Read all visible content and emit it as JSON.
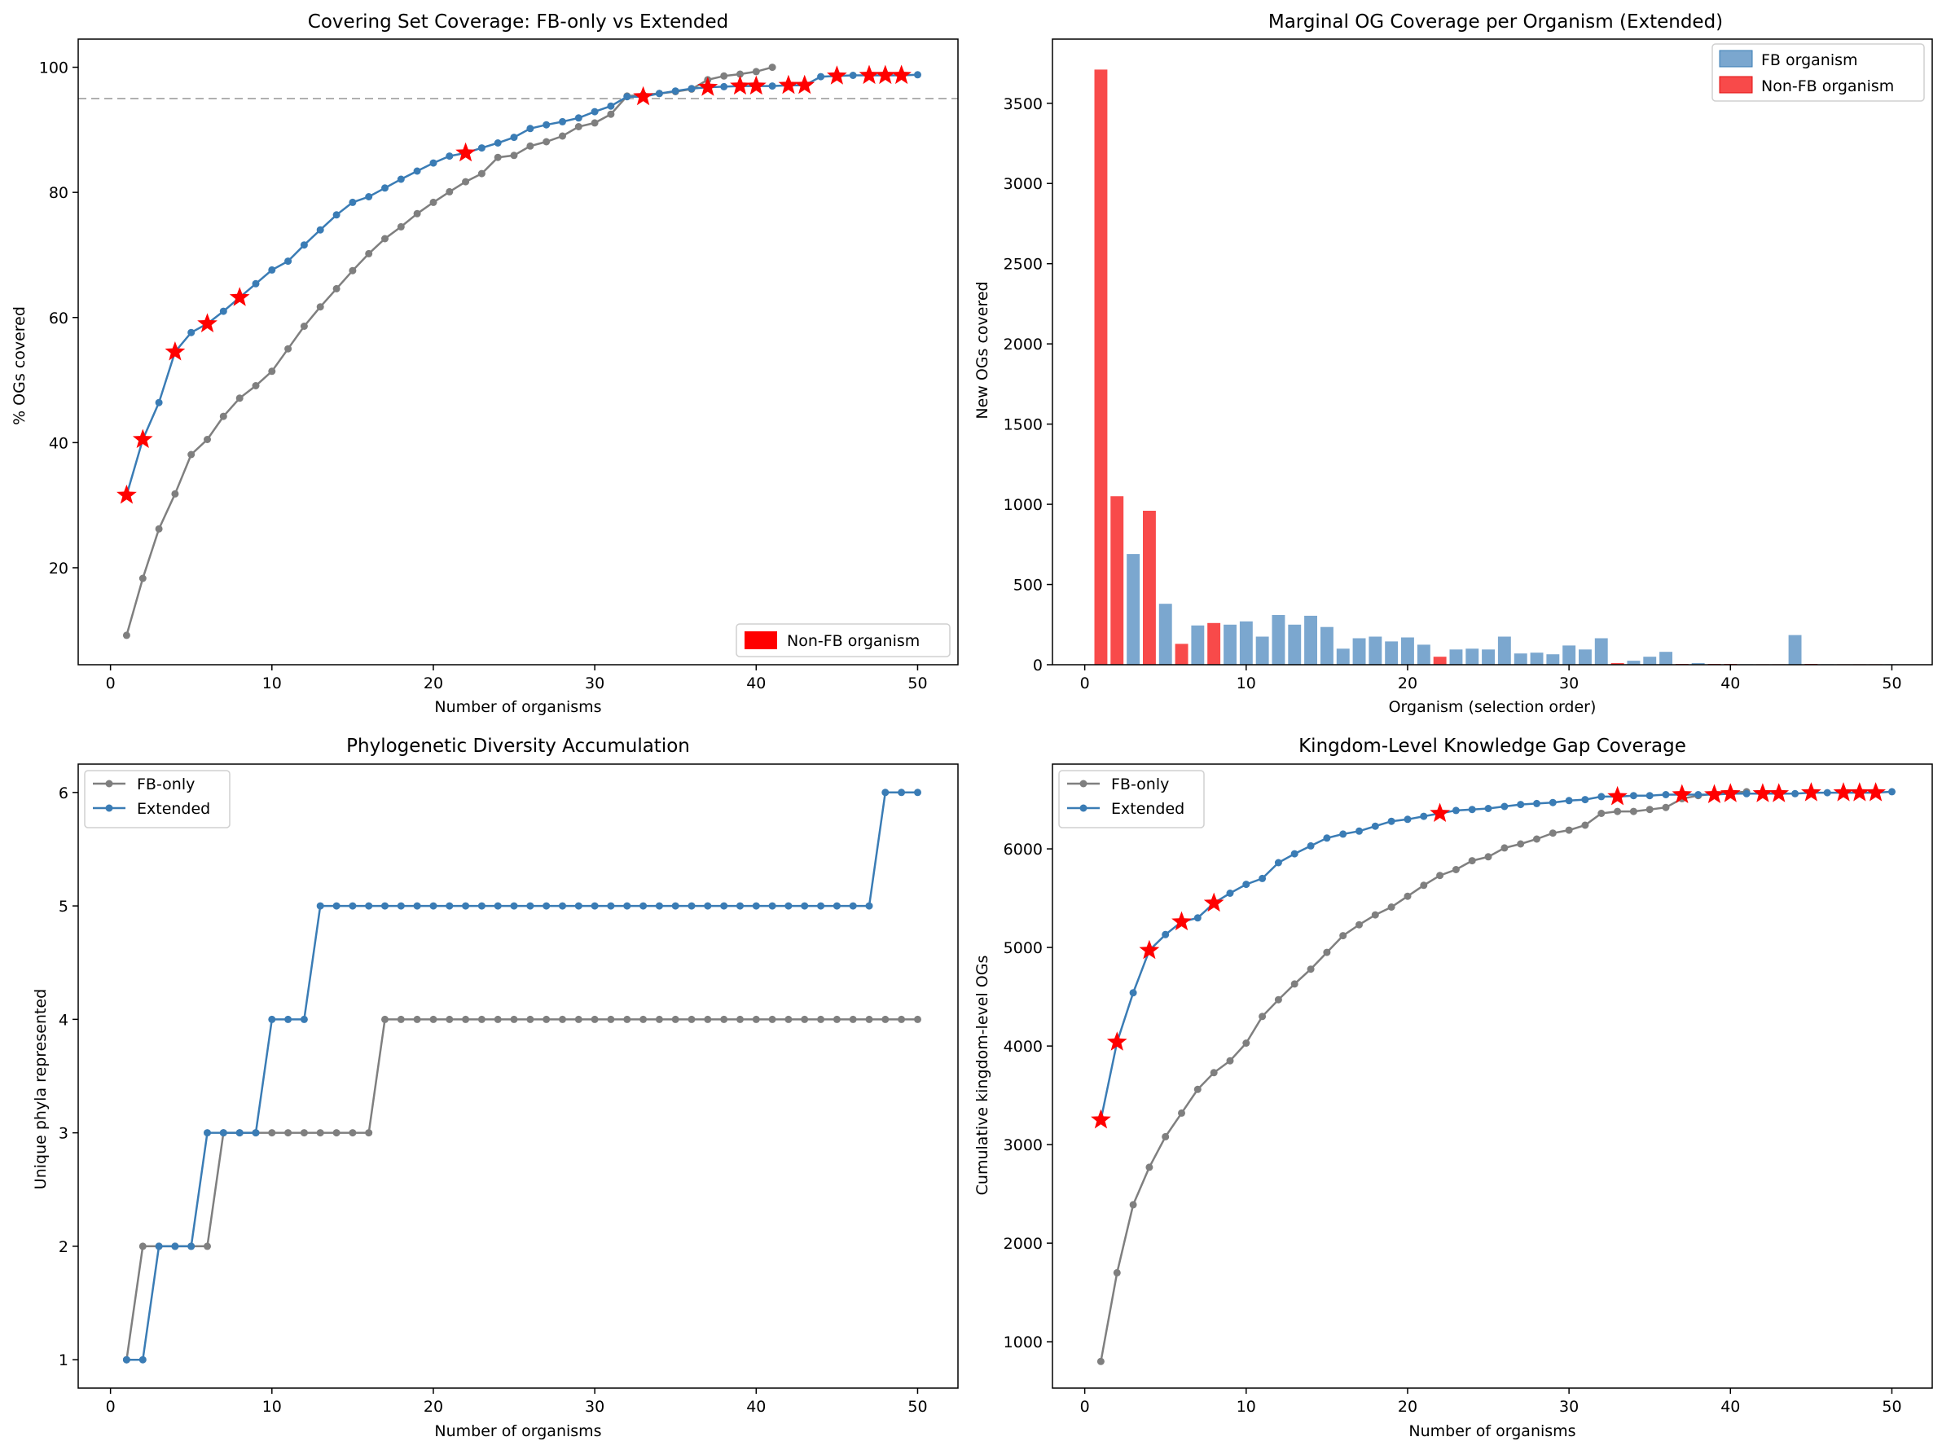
{
  "colors": {
    "fb_only_line": "#7f7f7f",
    "extended_line": "#3a7cb5",
    "non_fb_star": "#ff0000",
    "fb_bar": "#7ba7cf",
    "non_fb_bar": "#f84a4a",
    "threshold": "#b0b0b0"
  },
  "chart_data": [
    {
      "type": "line",
      "title": "Covering Set Coverage: FB-only vs Extended",
      "xlabel": "Number of organisms",
      "ylabel": "% OGs covered",
      "xlim": [
        -2,
        52.5
      ],
      "ylim": [
        4.5,
        104.5
      ],
      "xticks": [
        0,
        10,
        20,
        30,
        40,
        50
      ],
      "yticks": [
        20,
        40,
        60,
        80,
        100
      ],
      "hline": 95,
      "legend": {
        "position": "lower-right",
        "entries": [
          {
            "label": "Non-FB organism",
            "kind": "patch",
            "color_key": "non_fb_star"
          }
        ]
      },
      "series": [
        {
          "name": "FB-only",
          "color_key": "fb_only_line",
          "x": [
            1,
            2,
            3,
            4,
            5,
            6,
            7,
            8,
            9,
            10,
            11,
            12,
            13,
            14,
            15,
            16,
            17,
            18,
            19,
            20,
            21,
            22,
            23,
            24,
            25,
            26,
            27,
            28,
            29,
            30,
            31,
            32,
            33,
            34,
            35,
            36,
            37,
            38,
            39,
            40,
            41
          ],
          "y": [
            9.2,
            18.3,
            26.2,
            31.8,
            38.1,
            40.5,
            44.2,
            47.1,
            49.1,
            51.4,
            55.0,
            58.6,
            61.7,
            64.6,
            67.5,
            70.2,
            72.6,
            74.5,
            76.6,
            78.4,
            80.1,
            81.7,
            83.0,
            85.6,
            85.9,
            87.4,
            88.1,
            89.0,
            90.5,
            91.1,
            92.5,
            95.4,
            95.6,
            95.8,
            96.1,
            96.5,
            98.0,
            98.6,
            98.9,
            99.3,
            100.0
          ]
        },
        {
          "name": "Extended",
          "color_key": "extended_line",
          "x": [
            1,
            2,
            3,
            4,
            5,
            6,
            7,
            8,
            9,
            10,
            11,
            12,
            13,
            14,
            15,
            16,
            17,
            18,
            19,
            20,
            21,
            22,
            23,
            24,
            25,
            26,
            27,
            28,
            29,
            30,
            31,
            32,
            33,
            34,
            35,
            36,
            37,
            38,
            39,
            40,
            41,
            42,
            43,
            44,
            45,
            46,
            47,
            48,
            49,
            50
          ],
          "y": [
            31.6,
            40.5,
            46.4,
            54.5,
            57.6,
            59.0,
            61.0,
            63.2,
            65.4,
            67.6,
            69.0,
            71.6,
            74.0,
            76.4,
            78.4,
            79.3,
            80.7,
            82.1,
            83.4,
            84.7,
            85.8,
            86.3,
            87.1,
            87.9,
            88.8,
            90.2,
            90.8,
            91.3,
            91.9,
            92.9,
            93.8,
            95.3,
            95.3,
            95.8,
            96.2,
            96.6,
            96.8,
            96.9,
            97.0,
            97.0,
            97.0,
            97.1,
            97.1,
            98.5,
            98.6,
            98.7,
            98.7,
            98.7,
            98.7,
            98.8
          ],
          "non_fb_indices": [
            1,
            2,
            4,
            6,
            8,
            22,
            33,
            37,
            39,
            40,
            42,
            43,
            45,
            47,
            48,
            49
          ]
        }
      ]
    },
    {
      "type": "bar",
      "title": "Marginal OG Coverage per Organism (Extended)",
      "xlabel": "Organism (selection order)",
      "ylabel": "New OGs covered",
      "xlim": [
        -2,
        52.5
      ],
      "ylim": [
        0,
        3900
      ],
      "xticks": [
        0,
        10,
        20,
        30,
        40,
        50
      ],
      "yticks": [
        0,
        500,
        1000,
        1500,
        2000,
        2500,
        3000,
        3500
      ],
      "legend": {
        "position": "top-right",
        "entries": [
          {
            "label": "FB organism",
            "color_key": "fb_bar"
          },
          {
            "label": "Non-FB organism",
            "color_key": "non_fb_bar"
          }
        ]
      },
      "categories": [
        1,
        2,
        3,
        4,
        5,
        6,
        7,
        8,
        9,
        10,
        11,
        12,
        13,
        14,
        15,
        16,
        17,
        18,
        19,
        20,
        21,
        22,
        23,
        24,
        25,
        26,
        27,
        28,
        29,
        30,
        31,
        32,
        33,
        34,
        35,
        36,
        37,
        38,
        39,
        40,
        41,
        42,
        43,
        44,
        45,
        46,
        47,
        48,
        49,
        50
      ],
      "values": [
        3710,
        1050,
        690,
        960,
        380,
        130,
        245,
        260,
        250,
        270,
        175,
        310,
        250,
        305,
        235,
        100,
        165,
        175,
        145,
        170,
        125,
        50,
        95,
        100,
        95,
        175,
        70,
        75,
        65,
        120,
        95,
        165,
        10,
        25,
        50,
        80,
        5,
        10,
        5,
        5,
        3,
        3,
        3,
        185,
        5,
        3,
        3,
        3,
        3,
        3
      ],
      "non_fb_indices": [
        1,
        2,
        4,
        6,
        8,
        22,
        33,
        37,
        39,
        40,
        42,
        43,
        45,
        47,
        48,
        49
      ]
    },
    {
      "type": "line",
      "title": "Phylogenetic Diversity Accumulation",
      "xlabel": "Number of organisms",
      "ylabel": "Unique phyla represented",
      "xlim": [
        -2,
        52.5
      ],
      "ylim": [
        0.75,
        6.25
      ],
      "xticks": [
        0,
        10,
        20,
        30,
        40,
        50
      ],
      "yticks": [
        1,
        2,
        3,
        4,
        5,
        6
      ],
      "legend": {
        "position": "top-left",
        "entries": [
          {
            "label": "FB-only",
            "color_key": "fb_only_line"
          },
          {
            "label": "Extended",
            "color_key": "extended_line"
          }
        ]
      },
      "series": [
        {
          "name": "FB-only",
          "color_key": "fb_only_line",
          "x": [
            1,
            2,
            3,
            4,
            5,
            6,
            7,
            8,
            9,
            10,
            11,
            12,
            13,
            14,
            15,
            16,
            17,
            18,
            19,
            20,
            21,
            22,
            23,
            24,
            25,
            26,
            27,
            28,
            29,
            30,
            31,
            32,
            33,
            34,
            35,
            36,
            37,
            38,
            39,
            40,
            41,
            42,
            43,
            44,
            45,
            46,
            47,
            48,
            49,
            50
          ],
          "y": [
            1,
            2,
            2,
            2,
            2,
            2,
            3,
            3,
            3,
            3,
            3,
            3,
            3,
            3,
            3,
            3,
            4,
            4,
            4,
            4,
            4,
            4,
            4,
            4,
            4,
            4,
            4,
            4,
            4,
            4,
            4,
            4,
            4,
            4,
            4,
            4,
            4,
            4,
            4,
            4,
            4,
            4,
            4,
            4,
            4,
            4,
            4,
            4,
            4,
            4
          ]
        },
        {
          "name": "Extended",
          "color_key": "extended_line",
          "x": [
            1,
            2,
            3,
            4,
            5,
            6,
            7,
            8,
            9,
            10,
            11,
            12,
            13,
            14,
            15,
            16,
            17,
            18,
            19,
            20,
            21,
            22,
            23,
            24,
            25,
            26,
            27,
            28,
            29,
            30,
            31,
            32,
            33,
            34,
            35,
            36,
            37,
            38,
            39,
            40,
            41,
            42,
            43,
            44,
            45,
            46,
            47,
            48,
            49,
            50
          ],
          "y": [
            1,
            1,
            2,
            2,
            2,
            3,
            3,
            3,
            3,
            4,
            4,
            4,
            5,
            5,
            5,
            5,
            5,
            5,
            5,
            5,
            5,
            5,
            5,
            5,
            5,
            5,
            5,
            5,
            5,
            5,
            5,
            5,
            5,
            5,
            5,
            5,
            5,
            5,
            5,
            5,
            5,
            5,
            5,
            5,
            5,
            5,
            5,
            6,
            6,
            6
          ]
        }
      ]
    },
    {
      "type": "line",
      "title": "Kingdom-Level Knowledge Gap Coverage",
      "xlabel": "Number of organisms",
      "ylabel": "Cumulative kingdom-level OGs",
      "xlim": [
        -2,
        52.5
      ],
      "ylim": [
        530,
        6860
      ],
      "xticks": [
        0,
        10,
        20,
        30,
        40,
        50
      ],
      "yticks": [
        1000,
        2000,
        3000,
        4000,
        5000,
        6000
      ],
      "legend": {
        "position": "top-left",
        "entries": [
          {
            "label": "FB-only",
            "color_key": "fb_only_line"
          },
          {
            "label": "Extended",
            "color_key": "extended_line"
          }
        ]
      },
      "series": [
        {
          "name": "FB-only",
          "color_key": "fb_only_line",
          "x": [
            1,
            2,
            3,
            4,
            5,
            6,
            7,
            8,
            9,
            10,
            11,
            12,
            13,
            14,
            15,
            16,
            17,
            18,
            19,
            20,
            21,
            22,
            23,
            24,
            25,
            26,
            27,
            28,
            29,
            30,
            31,
            32,
            33,
            34,
            35,
            36,
            37,
            38,
            39,
            40,
            41
          ],
          "y": [
            800,
            1700,
            2390,
            2770,
            3080,
            3320,
            3560,
            3730,
            3850,
            4030,
            4300,
            4470,
            4630,
            4780,
            4950,
            5120,
            5230,
            5330,
            5410,
            5520,
            5630,
            5730,
            5790,
            5880,
            5920,
            6010,
            6050,
            6100,
            6160,
            6190,
            6240,
            6360,
            6380,
            6380,
            6400,
            6420,
            6510,
            6540,
            6560,
            6570,
            6580
          ]
        },
        {
          "name": "Extended",
          "color_key": "extended_line",
          "x": [
            1,
            2,
            3,
            4,
            5,
            6,
            7,
            8,
            9,
            10,
            11,
            12,
            13,
            14,
            15,
            16,
            17,
            18,
            19,
            20,
            21,
            22,
            23,
            24,
            25,
            26,
            27,
            28,
            29,
            30,
            31,
            32,
            33,
            34,
            35,
            36,
            37,
            38,
            39,
            40,
            41,
            42,
            43,
            44,
            45,
            46,
            47,
            48,
            49,
            50
          ],
          "y": [
            3250,
            4040,
            4540,
            4970,
            5130,
            5260,
            5300,
            5450,
            5550,
            5640,
            5700,
            5860,
            5950,
            6030,
            6110,
            6150,
            6180,
            6230,
            6280,
            6300,
            6330,
            6360,
            6390,
            6400,
            6410,
            6430,
            6450,
            6460,
            6470,
            6490,
            6500,
            6530,
            6530,
            6540,
            6540,
            6550,
            6550,
            6550,
            6550,
            6560,
            6560,
            6560,
            6560,
            6560,
            6570,
            6570,
            6570,
            6570,
            6570,
            6580
          ],
          "non_fb_indices": [
            1,
            2,
            4,
            6,
            8,
            22,
            33,
            37,
            39,
            40,
            42,
            43,
            45,
            47,
            48,
            49
          ]
        }
      ]
    }
  ]
}
